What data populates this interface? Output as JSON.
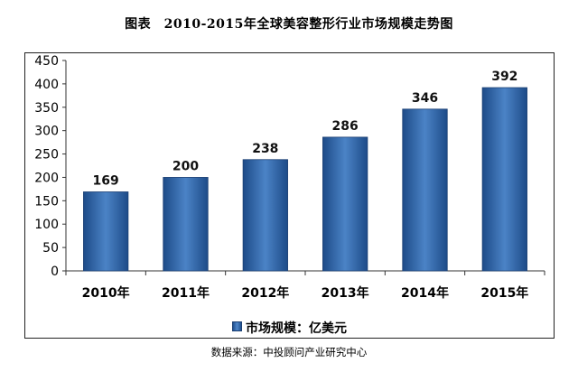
{
  "title": "图表　2010-2015年全球美容整形行业市场规模走势图",
  "source": "数据来源：中投顾问产业研究中心",
  "chart_data": {
    "type": "bar",
    "categories": [
      "2010年",
      "2011年",
      "2012年",
      "2013年",
      "2014年",
      "2015年"
    ],
    "series": [
      {
        "name": "市场规模：亿美元",
        "values": [
          169,
          200,
          238,
          286,
          346,
          392
        ],
        "color": "#3a6fb3"
      }
    ],
    "data_labels": [
      "169",
      "200",
      "238",
      "286",
      "346",
      "392"
    ],
    "ylim": [
      0,
      450
    ],
    "yticks": [
      0,
      50,
      100,
      150,
      200,
      250,
      300,
      350,
      400,
      450
    ],
    "legend_position": "bottom",
    "grid": false
  }
}
